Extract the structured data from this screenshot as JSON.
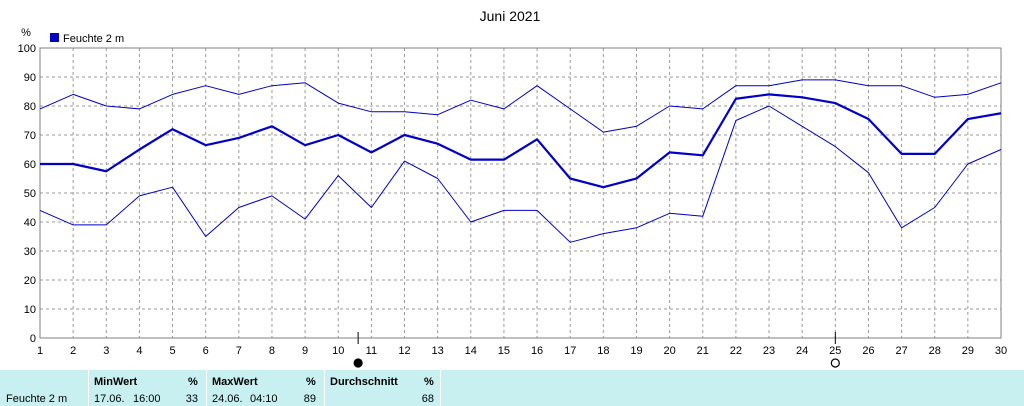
{
  "chart_data": {
    "type": "line",
    "title": "Juni 2021",
    "ylabel": "%",
    "ylim": [
      0,
      100
    ],
    "yticks": [
      0,
      10,
      20,
      30,
      40,
      50,
      60,
      70,
      80,
      90,
      100
    ],
    "x": [
      1,
      2,
      3,
      4,
      5,
      6,
      7,
      8,
      9,
      10,
      11,
      12,
      13,
      14,
      15,
      16,
      17,
      18,
      19,
      20,
      21,
      22,
      23,
      24,
      25,
      26,
      27,
      28,
      29,
      30
    ],
    "grid": true,
    "legend": {
      "position": "top-left",
      "entries": [
        "Feuchte  2 m"
      ]
    },
    "series": [
      {
        "name": "Feuchte  2 m",
        "role": "mean",
        "color": "#0000c8",
        "values": [
          60,
          60,
          57.5,
          65,
          72,
          66.5,
          69,
          73,
          66.5,
          70,
          64,
          70,
          67,
          61.5,
          61.5,
          68.5,
          55,
          52,
          55,
          64,
          63,
          82.5,
          84,
          83,
          81,
          75.5,
          63.5,
          63.5,
          75.5,
          77.5
        ]
      },
      {
        "role": "max",
        "color": "#0000c8",
        "values": [
          79,
          84,
          80,
          79,
          84,
          87,
          84,
          87,
          88,
          81,
          78,
          78,
          77,
          82,
          79,
          87,
          79,
          71,
          73,
          80,
          79,
          87,
          87,
          89,
          89,
          87,
          87,
          83,
          84,
          88
        ]
      },
      {
        "role": "min",
        "color": "#0000c8",
        "values": [
          44,
          39,
          39,
          49,
          52,
          35,
          45,
          49,
          41,
          56,
          45,
          61,
          55,
          40,
          44,
          44,
          33,
          36,
          38,
          43,
          42,
          75,
          80,
          73,
          66,
          57,
          38,
          45,
          60,
          65
        ]
      }
    ],
    "markers": [
      {
        "x": 10.6,
        "symbol": "full-moon"
      },
      {
        "x": 25,
        "symbol": "new-moon"
      }
    ]
  },
  "stats": {
    "label": "Feuchte  2 m",
    "min": {
      "header": "MinWert",
      "unit": "%",
      "date": "17.06.",
      "time": "16:00",
      "value": "33"
    },
    "max": {
      "header": "MaxWert",
      "unit": "%",
      "date": "24.06.",
      "time": "04:10",
      "value": "89"
    },
    "avg": {
      "header": "Durchschnitt",
      "unit": "%",
      "value": "68"
    }
  }
}
